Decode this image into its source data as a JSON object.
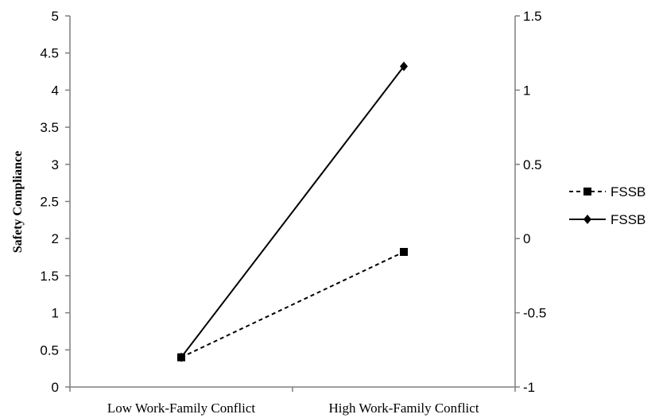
{
  "chart_data": {
    "type": "line",
    "title": "",
    "xlabel": "",
    "ylabel": "Safety Compliance",
    "categories": [
      "Low Work-Family Conflict",
      "High Work-Family Conflict"
    ],
    "ylim": [
      0,
      5
    ],
    "yticks": [
      "0",
      "0.5",
      "1",
      "1.5",
      "2",
      "2.5",
      "3",
      "3.5",
      "4",
      "4.5",
      "5"
    ],
    "y2lim": [
      -1,
      1.5
    ],
    "y2ticks": [
      "-1",
      "-0.5",
      "0",
      "0.5",
      "1",
      "1.5"
    ],
    "grid": false,
    "legend_position": "right",
    "series": [
      {
        "name": "FSSB",
        "values": [
          0.4,
          1.82
        ],
        "line_style": "dashed",
        "marker": "square",
        "color": "#000000"
      },
      {
        "name": "FSSB",
        "values": [
          0.4,
          4.32
        ],
        "line_style": "solid",
        "marker": "diamond",
        "color": "#000000"
      }
    ]
  }
}
